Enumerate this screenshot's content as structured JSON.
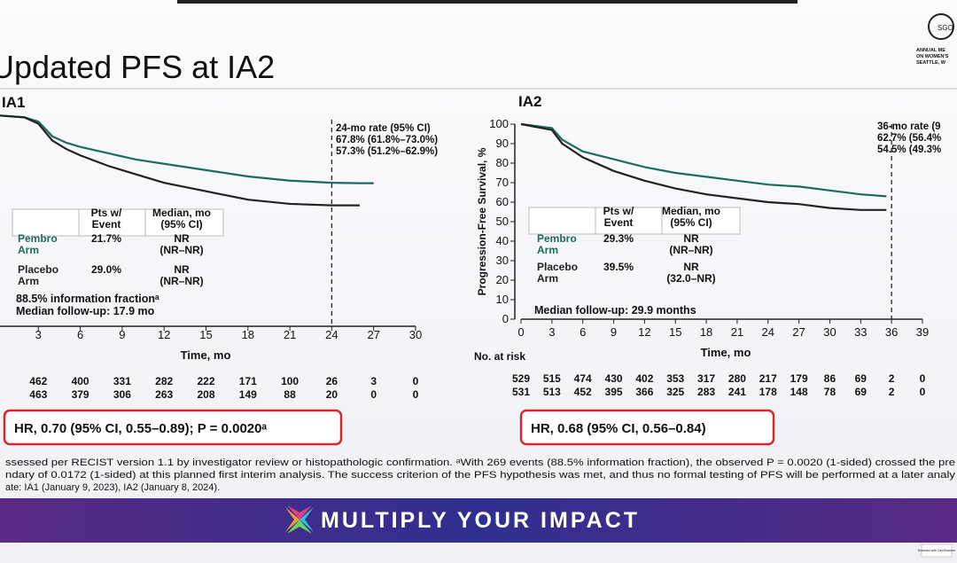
{
  "header": {
    "title": "Updated PFS at IA2",
    "logo": {
      "mark": "SGO",
      "lines": [
        "ANNUAL ME",
        "ON WOMEN'S",
        "SEATTLE, W"
      ]
    }
  },
  "chart_data": [
    {
      "type": "line",
      "title": "IA1",
      "xlabel": "Time, mo",
      "xlim": [
        0,
        30
      ],
      "xticks": [
        3,
        6,
        9,
        12,
        15,
        18,
        21,
        24,
        27,
        30
      ],
      "ylim": [
        0,
        100
      ],
      "x": [
        0,
        2,
        3,
        4,
        5,
        6,
        8,
        10,
        12,
        15,
        18,
        21,
        24,
        26,
        27
      ],
      "series": [
        {
          "name": "Pembro Arm",
          "color": "#1d6b5a",
          "values": [
            100,
            99,
            97,
            90,
            87,
            85,
            82,
            79,
            77,
            74,
            71,
            69,
            68,
            67.8,
            67.8
          ]
        },
        {
          "name": "Placebo Arm",
          "color": "#222222",
          "values": [
            100,
            99,
            96,
            88,
            84,
            81,
            76,
            72,
            68,
            64,
            60,
            58,
            57.3,
            57.3,
            null
          ]
        }
      ],
      "rate_box": [
        "24-mo rate (95% CI)",
        "67.8% (61.8%–73.0%)",
        "57.3% (51.2%–62.9%)"
      ],
      "table": {
        "columns": [
          [
            "Pts w/",
            "Event"
          ],
          [
            "Median, mo",
            "(95% CI)"
          ]
        ],
        "rows": [
          [
            [
              "21.7%"
            ],
            [
              "NR",
              "(NR–NR)"
            ]
          ],
          [
            [
              "29.0%"
            ],
            [
              "NR",
              "(NR–NR)"
            ]
          ]
        ]
      },
      "notes": [
        "88.5% information fractionᵃ",
        "Median follow-up: 17.9 mo"
      ],
      "at_risk": [
        [
          462,
          400,
          331,
          282,
          222,
          171,
          100,
          26,
          3,
          0
        ],
        [
          463,
          379,
          306,
          263,
          208,
          149,
          88,
          20,
          0,
          0
        ]
      ],
      "hr": "HR, 0.70 (95% CI, 0.55–0.89); P = 0.0020ᵃ"
    },
    {
      "type": "line",
      "title": "IA2",
      "xlabel": "Time, mo",
      "ylabel": "Progression-Free Survival, %",
      "xlim": [
        0,
        39
      ],
      "xticks": [
        0,
        3,
        6,
        9,
        12,
        15,
        18,
        21,
        24,
        27,
        30,
        33,
        36,
        39
      ],
      "ylim": [
        0,
        100
      ],
      "yticks": [
        0,
        10,
        20,
        30,
        40,
        50,
        60,
        70,
        80,
        90,
        100
      ],
      "x": [
        0,
        3,
        4,
        6,
        9,
        12,
        15,
        18,
        21,
        24,
        27,
        30,
        33,
        35.5
      ],
      "series": [
        {
          "name": "Pembro Arm",
          "color": "#1d6b5a",
          "values": [
            100,
            98,
            92,
            86,
            82,
            78,
            75,
            73,
            71,
            69,
            68,
            66,
            64,
            63
          ]
        },
        {
          "name": "Placebo Arm",
          "color": "#222222",
          "values": [
            100,
            97,
            90,
            83,
            76,
            71,
            67,
            64,
            62,
            60,
            59,
            57,
            56,
            56
          ]
        }
      ],
      "rate_box": [
        "36-mo rate (9",
        "62.7% (56.4%",
        "54.5% (49.3%"
      ],
      "table": {
        "columns": [
          [
            "Pts w/",
            "Event"
          ],
          [
            "Median, mo",
            "(95% CI)"
          ]
        ],
        "rows": [
          [
            [
              "29.3%"
            ],
            [
              "NR",
              "(NR–NR)"
            ]
          ],
          [
            [
              "39.5%"
            ],
            [
              "NR",
              "(32.0–NR)"
            ]
          ]
        ]
      },
      "notes": [
        "Median follow-up: 29.9 months"
      ],
      "at_risk_label": "No. at risk",
      "at_risk": [
        [
          529,
          515,
          474,
          430,
          402,
          353,
          317,
          280,
          217,
          179,
          86,
          69,
          2,
          0
        ],
        [
          531,
          513,
          452,
          395,
          366,
          325,
          283,
          241,
          178,
          148,
          78,
          69,
          2,
          0
        ]
      ],
      "hr": "HR, 0.68 (95% CI, 0.56–0.84)"
    }
  ],
  "footnotes": [
    "ssessed per RECIST version 1.1 by investigator review or histopathologic confirmation. ᵃWith 269 events (88.5% information fraction), the observed P = 0.0020 (1-sided) crossed the pre",
    "ndary of 0.0172 (1-sided) at this planned first interim analysis. The success criterion of the PFS hypothesis was met, and thus no formal testing of PFS will be performed at a later analy",
    "ate: IA1 (January 9, 2023), IA2 (January 8, 2024)."
  ],
  "banner": "MULTIPLY YOUR IMPACT",
  "watermark": "Scanned with CamScanner"
}
